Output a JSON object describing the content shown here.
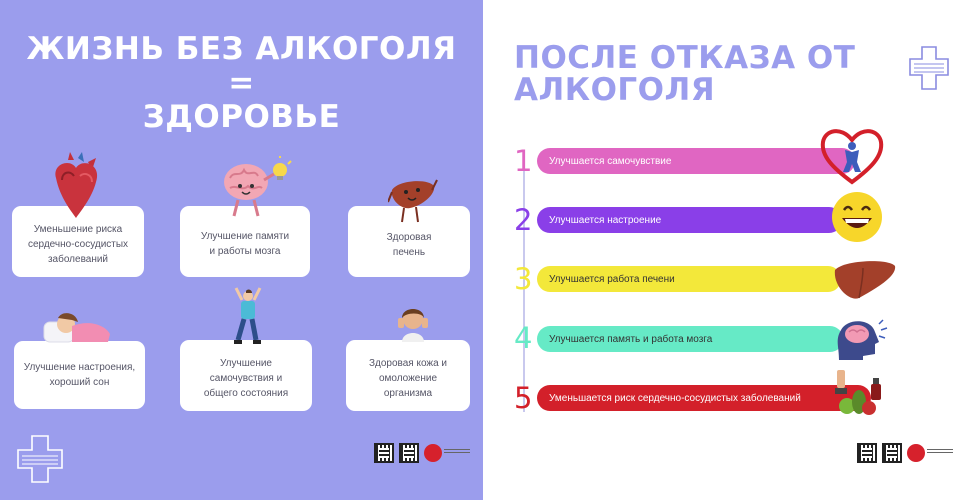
{
  "left": {
    "title_line1": "ЖИЗНЬ БЕЗ АЛКОГОЛЯ",
    "title_line2": "=",
    "title_line3": "ЗДОРОВЬЕ",
    "cards": [
      {
        "line1": "Уменьшение риска",
        "line2": "сердечно-сосудистых",
        "line3": "заболеваний",
        "icon": "heart-organ-icon"
      },
      {
        "line1": "Улучшение памяти",
        "line2": "и работы мозга",
        "line3": "",
        "icon": "brain-icon"
      },
      {
        "line1": "Здоровая",
        "line2": "печень",
        "line3": "",
        "icon": "liver-icon"
      },
      {
        "line1": "Улучшение настроения,",
        "line2": "хороший сон",
        "line3": "",
        "icon": "sleeping-person-icon"
      },
      {
        "line1": "Улучшение",
        "line2": "самочувствия и",
        "line3": "общего состояния",
        "icon": "jumping-person-icon"
      },
      {
        "line1": "Здоровая кожа и",
        "line2": "омоложение",
        "line3": "организма",
        "icon": "skincare-person-icon"
      }
    ]
  },
  "right": {
    "title_line1": "ПОСЛЕ ОТКАЗА ОТ",
    "title_line2": "АЛКОГОЛЯ",
    "items": [
      {
        "number": "1",
        "label": "Улучшается самочувствие",
        "color": "#e066c2",
        "text_color": "#ffffff",
        "icon": "heart-person-icon"
      },
      {
        "number": "2",
        "label": "Улучшается настроение",
        "color": "#8a3fe8",
        "text_color": "#ffffff",
        "icon": "smiley-face-icon"
      },
      {
        "number": "3",
        "label": "Улучшается работа печени",
        "color": "#f3e83a",
        "text_color": "#333333",
        "icon": "liver-icon"
      },
      {
        "number": "4",
        "label": "Улучшается память и работа мозга",
        "color": "#66eac6",
        "text_color": "#333333",
        "icon": "brain-head-icon"
      },
      {
        "number": "5",
        "label": "Уменьшается риск сердечно-сосудистых заболеваний",
        "color": "#d3202a",
        "text_color": "#ffffff",
        "icon": "healthy-food-icon"
      }
    ]
  },
  "colors": {
    "panel_bg": "#9b9ded",
    "title_right": "#9b9ded",
    "number_colors": [
      "#e066c2",
      "#8a3fe8",
      "#f3e83a",
      "#66eac6",
      "#d3202a"
    ]
  }
}
